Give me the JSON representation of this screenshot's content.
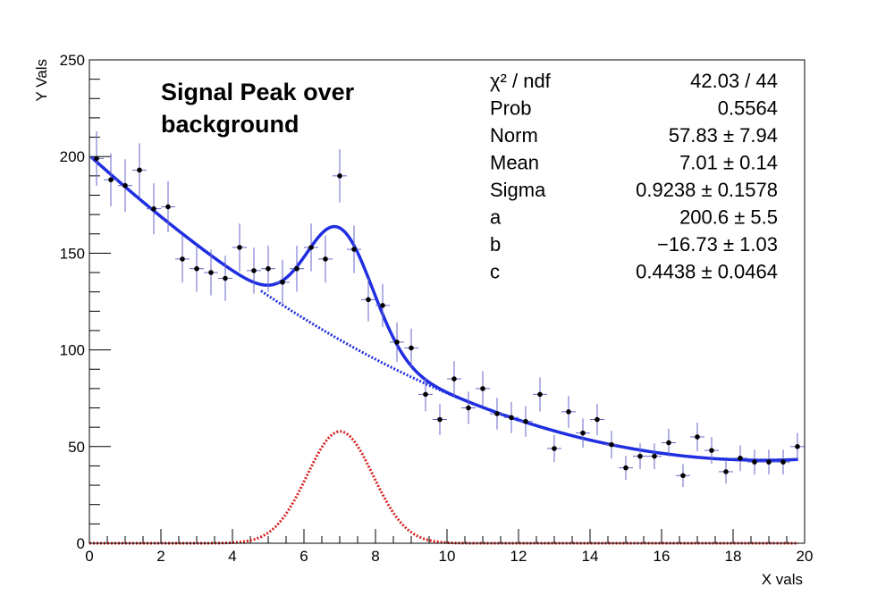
{
  "chart_data": {
    "type": "scatter",
    "title_lines": [
      "Signal Peak over",
      "background"
    ],
    "xlabel": "X vals",
    "ylabel": "Y Vals",
    "xlim": [
      0,
      20
    ],
    "ylim": [
      0,
      250
    ],
    "x_ticks": [
      0,
      2,
      4,
      6,
      8,
      10,
      12,
      14,
      16,
      18,
      20
    ],
    "y_ticks": [
      0,
      50,
      100,
      150,
      200,
      250
    ],
    "x_minor_step": 0.5,
    "y_minor_step": 10,
    "bin_width": 0.4,
    "points": [
      {
        "x": 0.2,
        "y": 199
      },
      {
        "x": 0.6,
        "y": 188
      },
      {
        "x": 1.0,
        "y": 185
      },
      {
        "x": 1.4,
        "y": 193
      },
      {
        "x": 1.8,
        "y": 173
      },
      {
        "x": 2.2,
        "y": 174
      },
      {
        "x": 2.6,
        "y": 147
      },
      {
        "x": 3.0,
        "y": 142
      },
      {
        "x": 3.4,
        "y": 140
      },
      {
        "x": 3.8,
        "y": 137
      },
      {
        "x": 4.2,
        "y": 153
      },
      {
        "x": 4.6,
        "y": 141
      },
      {
        "x": 5.0,
        "y": 142
      },
      {
        "x": 5.4,
        "y": 135
      },
      {
        "x": 5.8,
        "y": 142
      },
      {
        "x": 6.2,
        "y": 153
      },
      {
        "x": 6.6,
        "y": 147
      },
      {
        "x": 7.0,
        "y": 190
      },
      {
        "x": 7.4,
        "y": 152
      },
      {
        "x": 7.8,
        "y": 126
      },
      {
        "x": 8.2,
        "y": 123
      },
      {
        "x": 8.6,
        "y": 104
      },
      {
        "x": 9.0,
        "y": 101
      },
      {
        "x": 9.4,
        "y": 77
      },
      {
        "x": 9.8,
        "y": 64
      },
      {
        "x": 10.2,
        "y": 85
      },
      {
        "x": 10.6,
        "y": 70
      },
      {
        "x": 11.0,
        "y": 80
      },
      {
        "x": 11.4,
        "y": 67
      },
      {
        "x": 11.8,
        "y": 65
      },
      {
        "x": 12.2,
        "y": 63
      },
      {
        "x": 12.6,
        "y": 77
      },
      {
        "x": 13.0,
        "y": 49
      },
      {
        "x": 13.4,
        "y": 68
      },
      {
        "x": 13.8,
        "y": 57
      },
      {
        "x": 14.2,
        "y": 64
      },
      {
        "x": 14.6,
        "y": 51
      },
      {
        "x": 15.0,
        "y": 39
      },
      {
        "x": 15.4,
        "y": 45
      },
      {
        "x": 15.8,
        "y": 45
      },
      {
        "x": 16.2,
        "y": 52
      },
      {
        "x": 16.6,
        "y": 35
      },
      {
        "x": 17.0,
        "y": 55
      },
      {
        "x": 17.4,
        "y": 48
      },
      {
        "x": 17.8,
        "y": 37
      },
      {
        "x": 18.2,
        "y": 44
      },
      {
        "x": 18.6,
        "y": 42
      },
      {
        "x": 19.0,
        "y": 42
      },
      {
        "x": 19.4,
        "y": 42
      },
      {
        "x": 19.8,
        "y": 50
      }
    ],
    "fit": {
      "total_color": "#1f2ee0",
      "background_color": "#1f2ee0",
      "signal_color": "#d62020",
      "point_color": "#000000",
      "error_bar_color": "#6666cc",
      "norm": 57.83,
      "mean": 7.01,
      "sigma": 0.9238,
      "a": 200.6,
      "b": -16.73,
      "c": 0.4438
    },
    "stats": [
      {
        "label": "χ² / ndf",
        "value": "42.03 / 44"
      },
      {
        "label": "Prob",
        "value": "0.5564"
      },
      {
        "label": "Norm",
        "value": "57.83 ± 7.94"
      },
      {
        "label": "Mean",
        "value": "7.01 ± 0.14"
      },
      {
        "label": "Sigma",
        "value": "0.9238 ± 0.1578"
      },
      {
        "label": "a",
        "value": "200.6 ± 5.5"
      },
      {
        "label": "b",
        "value": "−16.73 ± 1.03"
      },
      {
        "label": "c",
        "value": "0.4438 ± 0.0464"
      }
    ]
  }
}
